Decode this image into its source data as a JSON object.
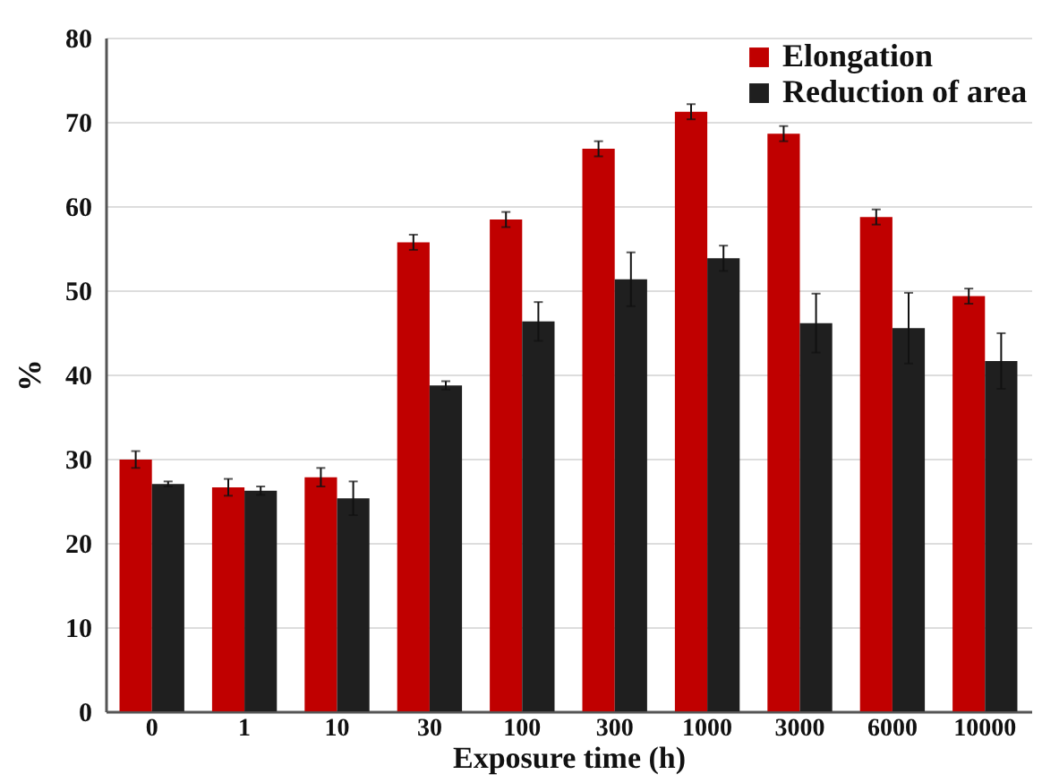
{
  "chart_data": {
    "type": "bar",
    "xlabel": "Exposure time (h)",
    "ylabel": "%",
    "categories": [
      "0",
      "1",
      "10",
      "30",
      "100",
      "300",
      "1000",
      "3000",
      "6000",
      "10000"
    ],
    "series": [
      {
        "name": "Elongation",
        "color": "#c00000",
        "values": [
          29.9,
          26.6,
          27.8,
          55.7,
          58.4,
          66.8,
          71.2,
          68.6,
          58.7,
          49.3
        ],
        "errors": [
          1.0,
          1.0,
          1.1,
          0.9,
          0.9,
          0.9,
          0.9,
          0.9,
          0.9,
          0.9
        ]
      },
      {
        "name": "Reduction of area",
        "color": "#1f1f1f",
        "values": [
          27.0,
          26.2,
          25.3,
          38.7,
          46.3,
          51.3,
          53.8,
          46.1,
          45.5,
          41.6
        ],
        "errors": [
          0.3,
          0.5,
          2.0,
          0.5,
          2.3,
          3.2,
          1.5,
          3.5,
          4.2,
          3.3
        ]
      }
    ],
    "ylim": [
      0,
      80
    ],
    "yticks": [
      0,
      10,
      20,
      30,
      40,
      50,
      60,
      70,
      80
    ],
    "grid": "y",
    "legend": "top right"
  }
}
